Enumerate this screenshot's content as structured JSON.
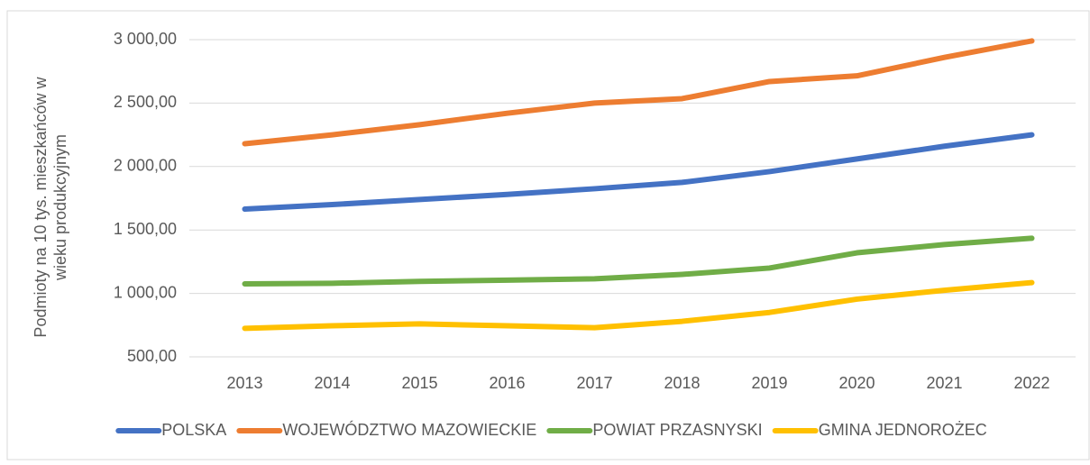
{
  "chart_data": {
    "type": "line",
    "ylabel": [
      "Podmioty na 10 tys. mieszkańców w",
      "wieku produkcyjnym"
    ],
    "categories": [
      "2013",
      "2014",
      "2015",
      "2016",
      "2017",
      "2018",
      "2019",
      "2020",
      "2021",
      "2022"
    ],
    "series": [
      {
        "name": "POLSKA",
        "color": "#4472c4",
        "values": [
          1665,
          1700,
          1740,
          1780,
          1825,
          1875,
          1960,
          2060,
          2160,
          2250
        ]
      },
      {
        "name": "WOJEWÓDZTWO MAZOWIECKIE",
        "color": "#ed7d31",
        "values": [
          2180,
          2250,
          2330,
          2420,
          2500,
          2535,
          2670,
          2715,
          2860,
          2990
        ]
      },
      {
        "name": "POWIAT PRZASNYSKI",
        "color": "#70ad47",
        "values": [
          1075,
          1080,
          1095,
          1105,
          1115,
          1150,
          1200,
          1320,
          1385,
          1435
        ]
      },
      {
        "name": "GMINA JEDNOROŻEC",
        "color": "#ffc000",
        "values": [
          725,
          745,
          760,
          745,
          730,
          780,
          850,
          955,
          1025,
          1085
        ]
      }
    ],
    "ylim": [
      500,
      3000
    ],
    "yticks": [
      {
        "value": 500,
        "label": "500,00"
      },
      {
        "value": 1000,
        "label": "1 000,00"
      },
      {
        "value": 1500,
        "label": "1 500,00"
      },
      {
        "value": 2000,
        "label": "2 000,00"
      },
      {
        "value": 2500,
        "label": "2 500,00"
      },
      {
        "value": 3000,
        "label": "3 000,00"
      }
    ],
    "grid": true,
    "legend": "bottom"
  }
}
